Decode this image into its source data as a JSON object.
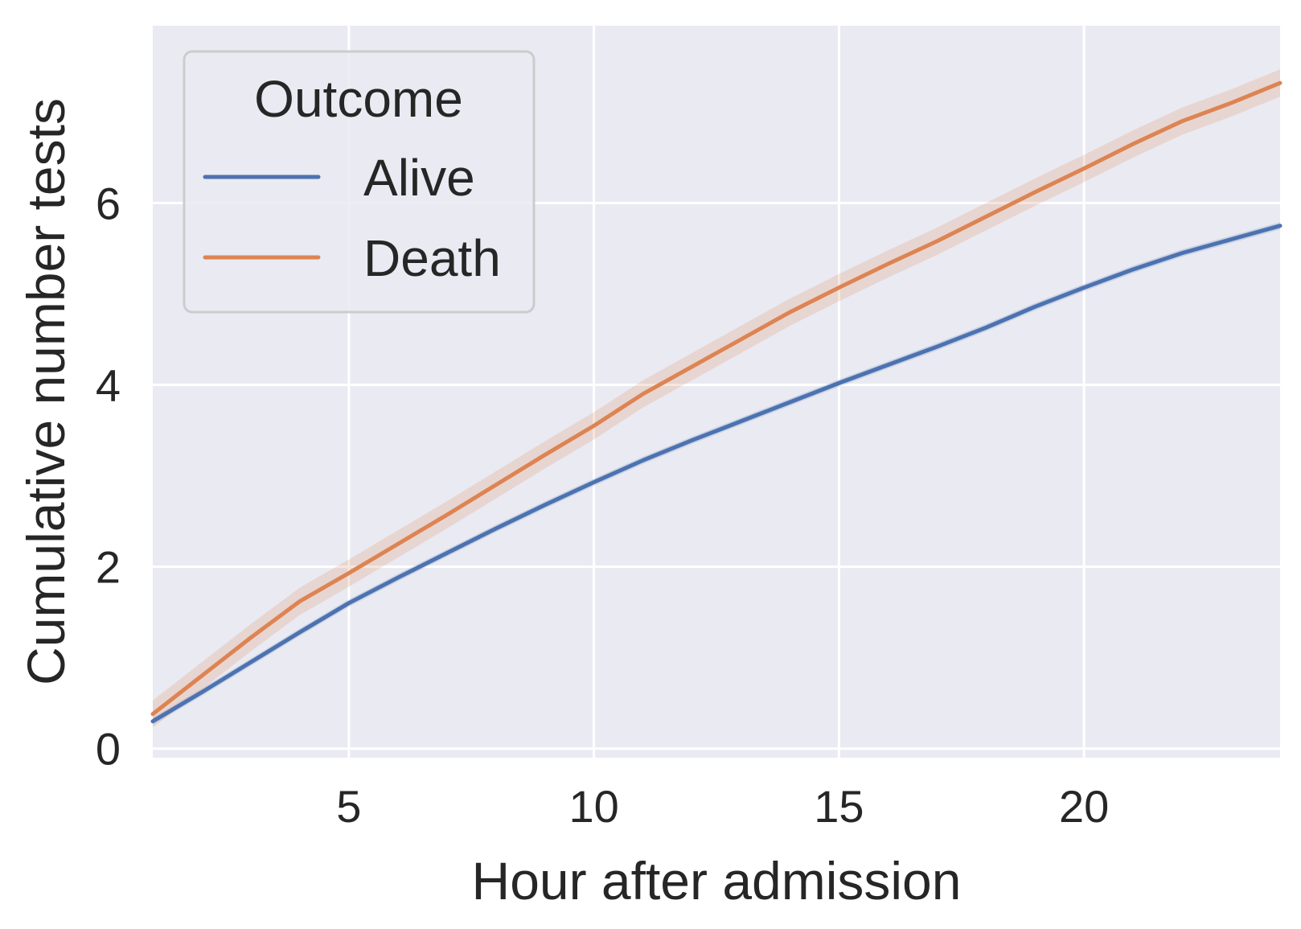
{
  "chart_data": {
    "type": "line",
    "title": "",
    "xlabel": "Hour after admission",
    "ylabel": "Cumulative number tests",
    "xlim": [
      1,
      24
    ],
    "ylim": [
      -0.1,
      7.95
    ],
    "x_ticks": [
      5,
      10,
      15,
      20
    ],
    "y_ticks": [
      0,
      2,
      4,
      6
    ],
    "grid": true,
    "legend": {
      "title": "Outcome",
      "placement": "top-left"
    },
    "series": [
      {
        "name": "Alive",
        "color": "#4c72b0",
        "x": [
          1,
          2,
          3,
          4,
          5,
          6,
          7,
          8,
          9,
          10,
          11,
          12,
          13,
          14,
          15,
          16,
          17,
          18,
          19,
          20,
          21,
          22,
          23,
          24
        ],
        "y": [
          0.3,
          0.62,
          0.95,
          1.28,
          1.6,
          1.88,
          2.15,
          2.42,
          2.68,
          2.93,
          3.17,
          3.39,
          3.6,
          3.81,
          4.02,
          4.22,
          4.42,
          4.63,
          4.86,
          5.07,
          5.27,
          5.45,
          5.6,
          5.75
        ],
        "ci": 0.04
      },
      {
        "name": "Death",
        "color": "#dd8452",
        "x": [
          1,
          2,
          3,
          4,
          5,
          6,
          7,
          8,
          9,
          10,
          11,
          12,
          13,
          14,
          15,
          16,
          17,
          18,
          19,
          20,
          21,
          22,
          23,
          24
        ],
        "y": [
          0.38,
          0.8,
          1.22,
          1.62,
          1.93,
          2.25,
          2.57,
          2.9,
          3.23,
          3.55,
          3.9,
          4.2,
          4.5,
          4.8,
          5.07,
          5.33,
          5.58,
          5.85,
          6.12,
          6.38,
          6.65,
          6.9,
          7.1,
          7.32
        ],
        "ci": 0.15
      }
    ]
  }
}
